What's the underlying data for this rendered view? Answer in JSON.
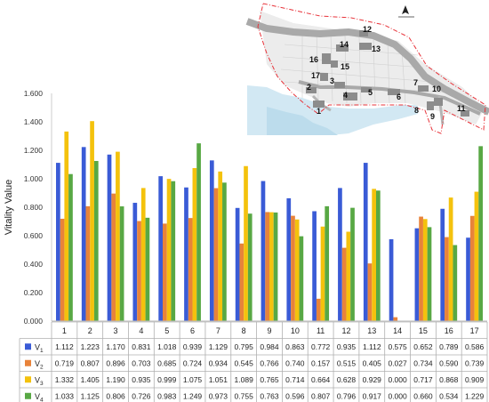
{
  "chart_data": {
    "type": "bar",
    "ylabel": "Vitality Value",
    "xlabel": "",
    "ylim": [
      0,
      1.6
    ],
    "yticks": [
      "0.000",
      "0.200",
      "0.400",
      "0.600",
      "0.800",
      "1.000",
      "1.200",
      "1.400",
      "1.600"
    ],
    "grid": false,
    "legend_position": "table-left",
    "categories": [
      "1",
      "2",
      "3",
      "4",
      "5",
      "6",
      "7",
      "8",
      "9",
      "10",
      "11",
      "12",
      "13",
      "14",
      "15",
      "16",
      "17"
    ],
    "series": [
      {
        "name": "V1",
        "label_main": "V",
        "label_sub": "1",
        "color": "#3a5bd6",
        "values": [
          1.112,
          1.223,
          1.17,
          0.831,
          1.018,
          0.939,
          1.129,
          0.795,
          0.984,
          0.863,
          0.772,
          0.935,
          1.112,
          0.575,
          0.652,
          0.789,
          0.586
        ],
        "labels": [
          "1.112",
          "1.223",
          "1.170",
          "0.831",
          "1.018",
          "0.939",
          "1.129",
          "0.795",
          "0.984",
          "0.863",
          "0.772",
          "0.935",
          "1.112",
          "0.575",
          "0.652",
          "0.789",
          "0.586"
        ]
      },
      {
        "name": "V2",
        "label_main": "V",
        "label_sub": "2",
        "color": "#e8833a",
        "values": [
          0.719,
          0.807,
          0.896,
          0.703,
          0.685,
          0.724,
          0.934,
          0.545,
          0.766,
          0.74,
          0.157,
          0.515,
          0.405,
          0.027,
          0.734,
          0.59,
          0.739
        ],
        "labels": [
          "0.719",
          "0.807",
          "0.896",
          "0.703",
          "0.685",
          "0.724",
          "0.934",
          "0.545",
          "0.766",
          "0.740",
          "0.157",
          "0.515",
          "0.405",
          "0.027",
          "0.734",
          "0.590",
          "0.739"
        ]
      },
      {
        "name": "V3",
        "label_main": "V",
        "label_sub": "3",
        "color": "#f4c20d",
        "values": [
          1.332,
          1.405,
          1.19,
          0.935,
          0.999,
          1.075,
          1.051,
          1.089,
          0.765,
          0.714,
          0.664,
          0.628,
          0.929,
          0.0,
          0.717,
          0.868,
          0.909
        ],
        "labels": [
          "1.332",
          "1.405",
          "1.190",
          "0.935",
          "0.999",
          "1.075",
          "1.051",
          "1.089",
          "0.765",
          "0.714",
          "0.664",
          "0.628",
          "0.929",
          "0.000",
          "0.717",
          "0.868",
          "0.909"
        ]
      },
      {
        "name": "V4",
        "label_main": "V",
        "label_sub": "4",
        "color": "#58a844",
        "values": [
          1.033,
          1.125,
          0.806,
          0.726,
          0.983,
          1.249,
          0.973,
          0.755,
          0.763,
          0.596,
          0.807,
          0.796,
          0.917,
          0.0,
          0.66,
          0.534,
          1.229
        ],
        "labels": [
          "1.033",
          "1.125",
          "0.806",
          "0.726",
          "0.983",
          "1.249",
          "0.973",
          "0.755",
          "0.763",
          "0.596",
          "0.807",
          "0.796",
          "0.917",
          "0.000",
          "0.660",
          "0.534",
          "1.229"
        ]
      }
    ]
  },
  "inset_map": {
    "site_labels": [
      "1",
      "2",
      "3",
      "4",
      "5",
      "6",
      "7",
      "8",
      "9",
      "10",
      "11",
      "12",
      "13",
      "14",
      "15",
      "16",
      "17"
    ],
    "colors": {
      "boundary": "#e8333a",
      "road": "#a9a9a9",
      "water": "#d2e8f3",
      "building": "#8c8c8c",
      "block": "#dcdcdc"
    }
  }
}
